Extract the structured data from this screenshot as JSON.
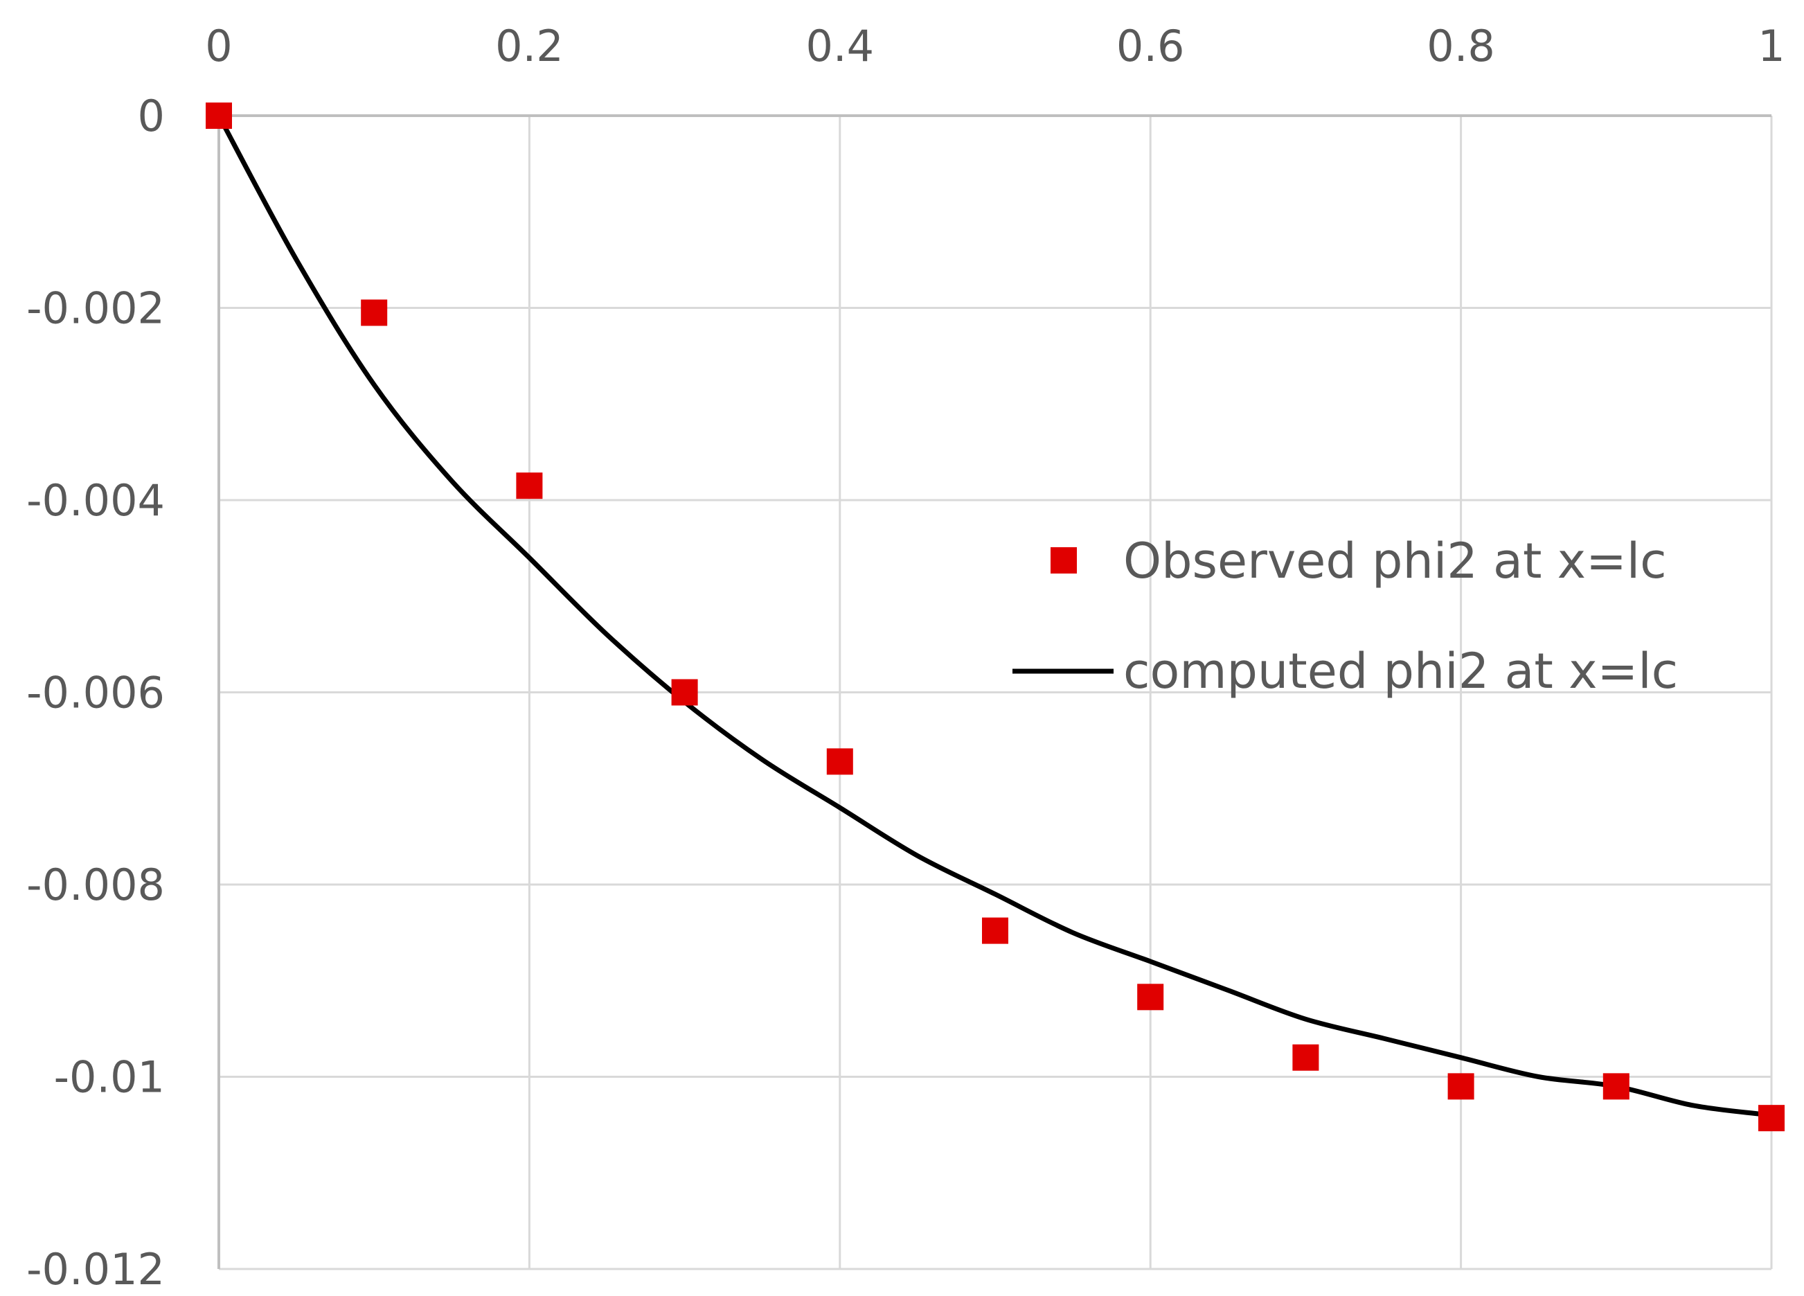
{
  "chart_data": {
    "type": "scatter",
    "x_ticks": [
      0,
      0.2,
      0.4,
      0.6,
      0.8,
      1
    ],
    "x_tick_labels": [
      "0",
      "0.2",
      "0.4",
      "0.6",
      "0.8",
      "1"
    ],
    "y_ticks": [
      0,
      -0.002,
      -0.004,
      -0.006,
      -0.008,
      -0.01,
      -0.012
    ],
    "y_tick_labels": [
      "0",
      "-0.002",
      "-0.004",
      "-0.006",
      "-0.008",
      "-0.01",
      "-0.012"
    ],
    "xlim": [
      0,
      1
    ],
    "ylim": [
      -0.012,
      0
    ],
    "x_axis_position": "top",
    "grid": true,
    "legend_position": "center-right",
    "series": [
      {
        "name": "Observed phi2 at x=lc",
        "kind": "scatter",
        "marker": "square",
        "color": "#e00000",
        "x": [
          0,
          0.1,
          0.2,
          0.3,
          0.4,
          0.5,
          0.6,
          0.7,
          0.8,
          0.9,
          1.0
        ],
        "y": [
          0,
          -0.00205,
          -0.00385,
          -0.006,
          -0.00672,
          -0.00848,
          -0.00917,
          -0.0098,
          -0.0101,
          -0.0101,
          -0.01043
        ]
      },
      {
        "name": "computed phi2 at x=lc",
        "kind": "line",
        "color": "#000000",
        "x": [
          0,
          0.05,
          0.1,
          0.15,
          0.2,
          0.25,
          0.3,
          0.35,
          0.4,
          0.45,
          0.5,
          0.55,
          0.6,
          0.65,
          0.7,
          0.75,
          0.8,
          0.85,
          0.9,
          0.95,
          1.0
        ],
        "y": [
          0,
          -0.0015,
          -0.0028,
          -0.0038,
          -0.0046,
          -0.0054,
          -0.0061,
          -0.0067,
          -0.0072,
          -0.0077,
          -0.0081,
          -0.0085,
          -0.0088,
          -0.0091,
          -0.0094,
          -0.0096,
          -0.0098,
          -0.01,
          -0.0101,
          -0.0103,
          -0.0104
        ]
      }
    ]
  }
}
